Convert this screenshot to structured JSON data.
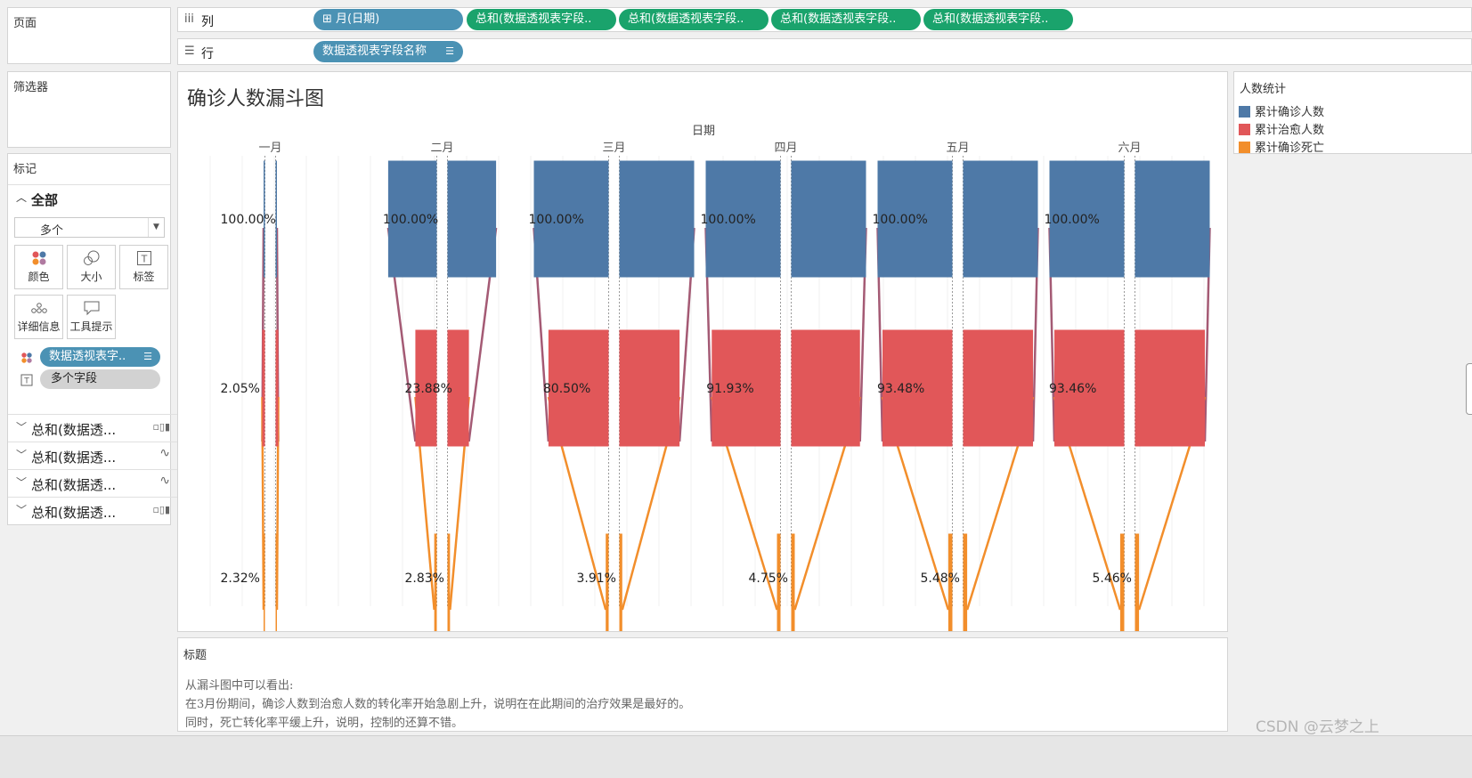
{
  "pages_panel": {
    "title": "页面"
  },
  "filters_panel": {
    "title": "筛选器"
  },
  "marks_panel": {
    "title": "标记",
    "all_label": "全部",
    "mark_type": "多个",
    "buttons": [
      {
        "label": "颜色",
        "icon": "color-dots-icon"
      },
      {
        "label": "大小",
        "icon": "size-icon"
      },
      {
        "label": "标签",
        "icon": "label-icon"
      },
      {
        "label": "详细信息",
        "icon": "detail-icon"
      },
      {
        "label": "工具提示",
        "icon": "tooltip-icon"
      }
    ],
    "pills": [
      {
        "label": "数据透视表字..",
        "icon": "color-dots-icon"
      },
      {
        "label": "多个字段",
        "icon": "label-icon"
      }
    ],
    "measures": [
      {
        "label": "总和(数据透...",
        "icon": "bar-chart-icon"
      },
      {
        "label": "总和(数据透...",
        "icon": "line-chart-icon"
      },
      {
        "label": "总和(数据透...",
        "icon": "line-chart-icon"
      },
      {
        "label": "总和(数据透...",
        "icon": "bar-chart-icon"
      }
    ]
  },
  "columns_shelf": {
    "label": "列",
    "icon": "columns-icon",
    "pills": [
      {
        "label": "⊞ 月(日期)",
        "color": "#4b92b4"
      },
      {
        "label": "总和(数据透视表字段..",
        "color": "#1aa36c"
      },
      {
        "label": "总和(数据透视表字段..",
        "color": "#1aa36c"
      },
      {
        "label": "总和(数据透视表字段..",
        "color": "#1aa36c"
      },
      {
        "label": "总和(数据透视表字段..",
        "color": "#1aa36c"
      }
    ]
  },
  "rows_shelf": {
    "label": "行",
    "icon": "rows-icon",
    "pills": [
      {
        "label": "数据透视表字段名称",
        "color": "#4b92b4",
        "icon": "sort-icon"
      }
    ]
  },
  "view": {
    "title": "确诊人数漏斗图",
    "header_label": "日期"
  },
  "legend": {
    "title": "人数统计",
    "items": [
      {
        "label": "累计确诊人数",
        "color": "#4e79a7"
      },
      {
        "label": "累计治愈人数",
        "color": "#e15759"
      },
      {
        "label": "累计确诊死亡",
        "color": "#f28e2b"
      }
    ]
  },
  "chart_data": {
    "type": "bar",
    "title": "确诊人数漏斗图",
    "xlabel": "日期",
    "categories": [
      "一月",
      "二月",
      "三月",
      "四月",
      "五月",
      "六月"
    ],
    "stage_labels": [
      "累计确诊人数",
      "累计治愈人数",
      "累计确诊死亡"
    ],
    "series": [
      {
        "name": "累计确诊人数",
        "color": "#4e79a7",
        "values": [
          100,
          100,
          100,
          100,
          100,
          100
        ],
        "labels": [
          "100.00%",
          "100.00%",
          "100.00%",
          "100.00%",
          "100.00%",
          "100.00%"
        ]
      },
      {
        "name": "累计治愈人数",
        "color": "#e15759",
        "values": [
          2.05,
          23.88,
          80.5,
          91.93,
          93.48,
          93.46
        ],
        "labels": [
          "2.05%",
          "23.88%",
          "80.50%",
          "91.93%",
          "93.48%",
          "93.46%"
        ]
      },
      {
        "name": "累计确诊死亡",
        "color": "#f28e2b",
        "values": [
          2.32,
          2.83,
          3.91,
          4.75,
          5.48,
          5.46
        ],
        "labels": [
          "2.32%",
          "2.83%",
          "3.91%",
          "4.75%",
          "5.48%",
          "5.46%"
        ]
      }
    ],
    "connector_color": "#a45a74"
  },
  "caption": {
    "title": "标题",
    "lines": [
      "从漏斗图中可以看出:",
      "在3月份期间，确诊人数到治愈人数的转化率开始急剧上升，说明在在此期间的治疗效果是最好的。",
      "同时，死亡转化率平缓上升，说明，控制的还算不错。"
    ]
  },
  "watermark": "CSDN @云梦之上"
}
